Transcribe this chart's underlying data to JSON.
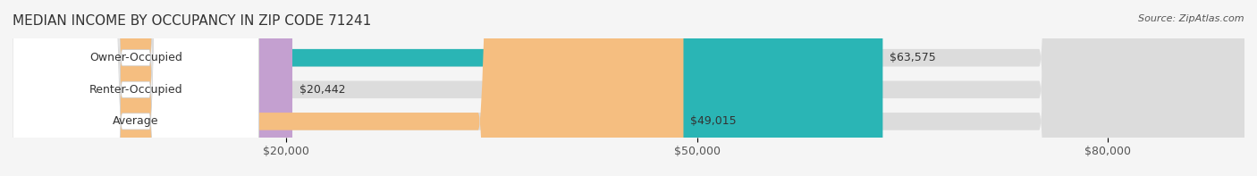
{
  "title": "MEDIAN INCOME BY OCCUPANCY IN ZIP CODE 71241",
  "source": "Source: ZipAtlas.com",
  "categories": [
    "Owner-Occupied",
    "Renter-Occupied",
    "Average"
  ],
  "values": [
    63575,
    20442,
    49015
  ],
  "labels": [
    "$63,575",
    "$20,442",
    "$49,015"
  ],
  "bar_colors": [
    "#2ab5b5",
    "#c4a0d0",
    "#f5be80"
  ],
  "bar_bg_color": "#e8e8e8",
  "xmax": 90000,
  "xticks": [
    20000,
    50000,
    80000
  ],
  "xtick_labels": [
    "$20,000",
    "$50,000",
    "$80,000"
  ],
  "title_fontsize": 11,
  "source_fontsize": 8,
  "label_fontsize": 9,
  "bar_height": 0.55,
  "background_color": "#f5f5f5"
}
